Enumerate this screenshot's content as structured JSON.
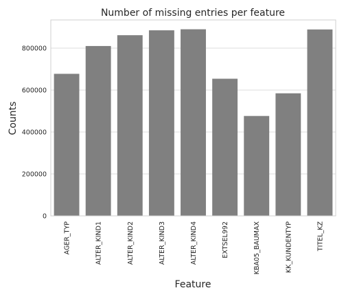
{
  "chart_data": {
    "type": "bar",
    "title": "Number of missing entries per feature",
    "xlabel": "Feature",
    "ylabel": "Counts",
    "categories": [
      "AGER_TYP",
      "ALTER_KIND1",
      "ALTER_KIND2",
      "ALTER_KIND3",
      "ALTER_KIND4",
      "EXTSEL992",
      "KBA05_BAUMAX",
      "KK_KUNDENTYP",
      "TITEL_KZ"
    ],
    "values": [
      677500,
      810163,
      861722,
      885051,
      890016,
      654153,
      476524,
      584612,
      889061
    ],
    "ylim": [
      0,
      934500
    ],
    "yticks": [
      0,
      200000,
      400000,
      600000,
      800000
    ],
    "ytick_labels": [
      "0",
      "200000",
      "400000",
      "600000",
      "800000"
    ],
    "grid": true,
    "bar_color": "#808080"
  }
}
